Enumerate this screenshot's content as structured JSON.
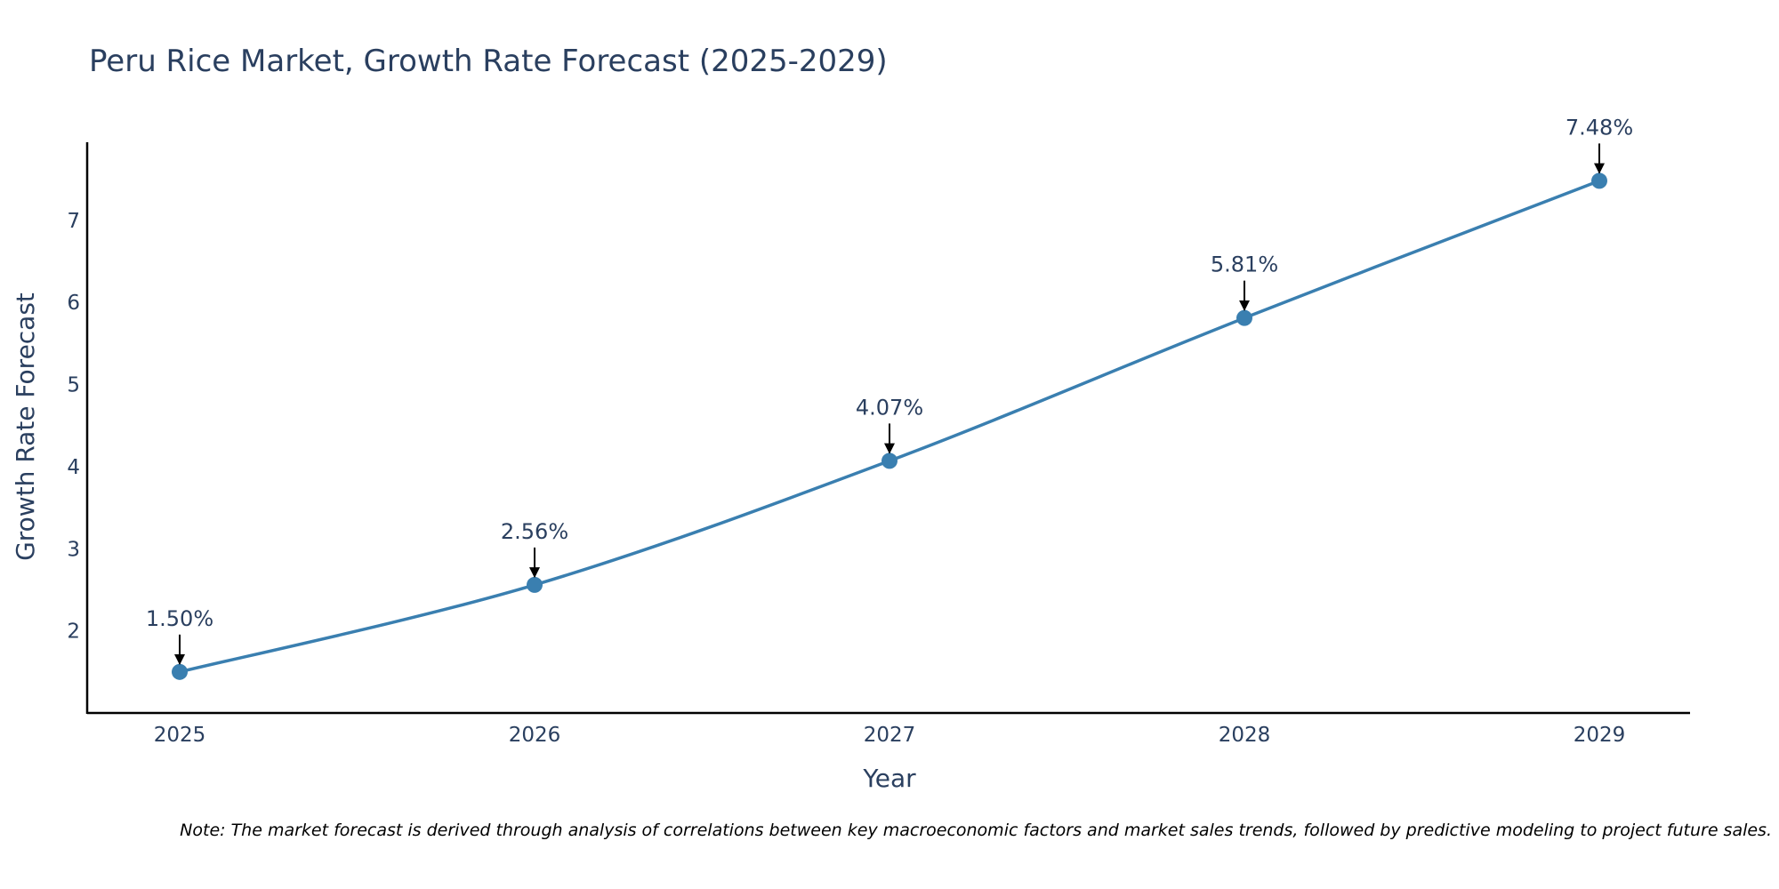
{
  "colors": {
    "line": "#3a7fb0",
    "marker": "#3a7fb0",
    "axis": "#000000",
    "text": "#2a3f5f",
    "arrow": "#000000"
  },
  "chart_data": {
    "type": "line",
    "title": "Peru Rice Market, Growth Rate Forecast (2025-2029)",
    "xlabel": "Year",
    "ylabel": "Growth Rate Forecast",
    "categories": [
      "2025",
      "2026",
      "2027",
      "2028",
      "2029"
    ],
    "values": [
      1.5,
      2.56,
      4.07,
      5.81,
      7.48
    ],
    "annotations": [
      "1.50%",
      "2.56%",
      "4.07%",
      "5.81%",
      "7.48%"
    ],
    "ylim": [
      1.0,
      7.95
    ],
    "yticks": [
      "2",
      "3",
      "4",
      "5",
      "6",
      "7"
    ],
    "grid": false,
    "note": "Note: The market forecast is derived through analysis of correlations between key macroeconomic factors and market sales trends, followed by predictive modeling to project future sales."
  }
}
